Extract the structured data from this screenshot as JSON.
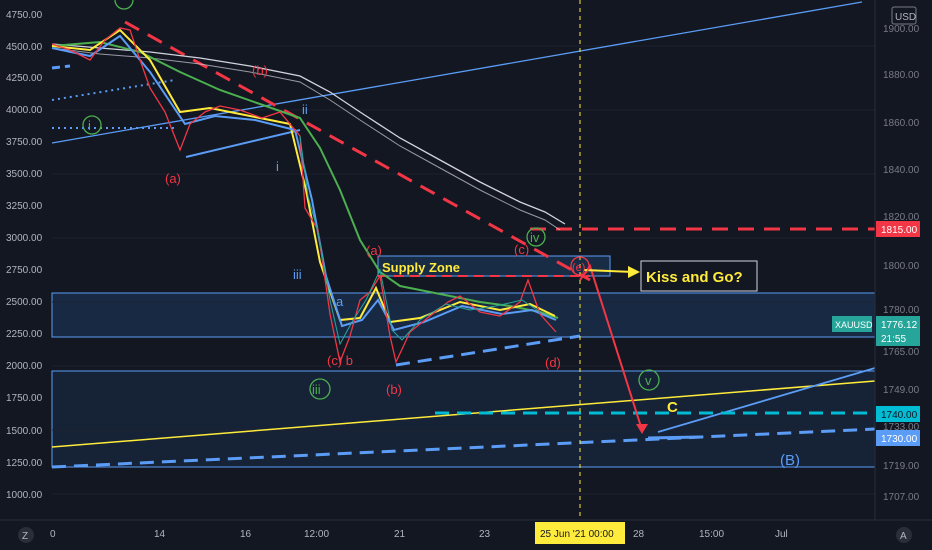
{
  "symbol": "XAUUSD",
  "currency_button": "USD",
  "left_axis_ticks": [
    "4750.00",
    "4500.00",
    "4250.00",
    "4000.00",
    "3750.00",
    "3500.00",
    "3250.00",
    "3000.00",
    "2750.00",
    "2500.00",
    "2250.00",
    "2000.00",
    "1750.00",
    "1500.00",
    "1250.00",
    "1000.00"
  ],
  "right_axis_ticks": [
    "1900.00",
    "1880.00",
    "1860.00",
    "1840.00",
    "1820.00",
    "1800.00",
    "1780.00",
    "1765.00",
    "1749.00",
    "1733.00",
    "1719.00",
    "1707.00"
  ],
  "x_axis_ticks": [
    "0",
    "14",
    "16",
    "12:00",
    "21",
    "23",
    "28",
    "15:00",
    "Jul"
  ],
  "cursor_date_badge": "25 Jun '21  00:00",
  "price_badges": {
    "level_1815": "1815.00",
    "level_1740": "1740.00",
    "level_1730": "1730.00",
    "current_price": "1776.12",
    "countdown": "21:55"
  },
  "annotations": {
    "supply_zone": "Supply Zone",
    "kiss_and_go": "Kiss and Go?",
    "wave_labels": {
      "a_top": "(a)",
      "b_top": "(b)",
      "i_circle": "i",
      "small_i": "i",
      "small_ii": "ii",
      "iii_blue": "iii",
      "a_mid": "(a)",
      "a_small": "a",
      "c_b": "(c) b",
      "iii_circle": "iii",
      "b_bottom": "(b)",
      "c_top": "(c)",
      "iv_circle": "iv",
      "e_circle": "(e)",
      "d": "(d)",
      "v_circle": "v",
      "c_yellow": "C",
      "B_big": "(B)"
    }
  },
  "bottom_buttons": {
    "left": "Z",
    "right": "A"
  },
  "colors": {
    "background": "#131722",
    "red": "#f23645",
    "blue": "#5b9cf6",
    "yellow": "#ffeb3b",
    "green": "#4caf50",
    "teal": "#26a69a",
    "cyan": "#00bcd4",
    "white": "#d1d4dc"
  }
}
